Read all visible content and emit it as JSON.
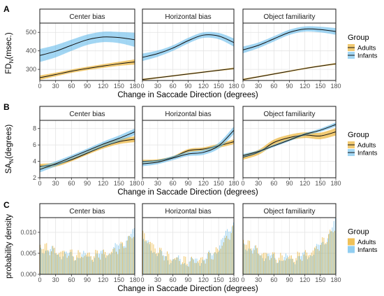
{
  "colors": {
    "adults": "#E69F00",
    "infants": "#56B4E9",
    "fit_line": "#111111",
    "panel_bg": "#FFFFFF",
    "grid_major": "#E3E3E3",
    "grid_minor": "#F1F1F1",
    "strip_bg": "#FFFFFF"
  },
  "legend": {
    "title": "Group",
    "entries": [
      "Adults",
      "Infants"
    ]
  },
  "x_axis": {
    "label": "Change in Saccade Direction (degrees)",
    "ticks": [
      0,
      30,
      60,
      90,
      120,
      150,
      180
    ],
    "tick_labels": [
      "0",
      "30",
      "60",
      "90",
      "120",
      "150",
      "180"
    ]
  },
  "chart_data": [
    {
      "tag": "A",
      "type": "line",
      "ylabel_main": "FD",
      "ylabel_sub": "N",
      "ylabel_rest": "(msec.)",
      "ylim": [
        240,
        550
      ],
      "yticks": [
        300,
        400,
        500
      ],
      "ytick_labels": [
        "300",
        "400",
        "500"
      ],
      "facets": [
        {
          "title": "Center bias",
          "series": [
            {
              "name": "Adults",
              "x": [
                0,
                30,
                60,
                90,
                120,
                150,
                180
              ],
              "y": [
                255,
                272,
                290,
                305,
                318,
                330,
                340
              ],
              "se": [
                12,
                10,
                9,
                9,
                10,
                11,
                14
              ]
            },
            {
              "name": "Infants",
              "x": [
                0,
                30,
                60,
                90,
                120,
                150,
                180
              ],
              "y": [
                375,
                398,
                430,
                460,
                475,
                472,
                460
              ],
              "se": [
                35,
                33,
                30,
                28,
                28,
                30,
                38
              ]
            }
          ]
        },
        {
          "title": "Horizontal bias",
          "series": [
            {
              "name": "Adults",
              "x": [
                0,
                30,
                60,
                90,
                120,
                150,
                180
              ],
              "y": [
                245,
                255,
                265,
                275,
                285,
                295,
                305
              ],
              "se": [
                5,
                4,
                4,
                4,
                4,
                4,
                5
              ]
            },
            {
              "name": "Infants",
              "x": [
                0,
                30,
                60,
                90,
                120,
                150,
                180
              ],
              "y": [
                365,
                385,
                415,
                455,
                485,
                480,
                445
              ],
              "se": [
                20,
                17,
                15,
                15,
                15,
                17,
                22
              ]
            }
          ]
        },
        {
          "title": "Object familiarity",
          "series": [
            {
              "name": "Adults",
              "x": [
                0,
                30,
                60,
                90,
                120,
                150,
                180
              ],
              "y": [
                245,
                260,
                275,
                290,
                305,
                318,
                330
              ],
              "se": [
                5,
                4,
                4,
                4,
                4,
                4,
                5
              ]
            },
            {
              "name": "Infants",
              "x": [
                0,
                30,
                60,
                90,
                120,
                150,
                180
              ],
              "y": [
                405,
                430,
                465,
                500,
                518,
                515,
                505
              ],
              "se": [
                18,
                15,
                14,
                14,
                14,
                15,
                18
              ]
            }
          ]
        }
      ]
    },
    {
      "tag": "B",
      "type": "line",
      "ylabel_main": "SA",
      "ylabel_sub": "N",
      "ylabel_rest": "(degrees)",
      "ylim": [
        2,
        9
      ],
      "yticks": [
        2,
        4,
        6,
        8
      ],
      "ytick_labels": [
        "2",
        "4",
        "6",
        "8"
      ],
      "facets": [
        {
          "title": "Center bias",
          "series": [
            {
              "name": "Adults",
              "x": [
                0,
                30,
                60,
                90,
                120,
                150,
                180
              ],
              "y": [
                3.4,
                3.6,
                4.2,
                5.0,
                5.8,
                6.4,
                6.7
              ],
              "se": [
                0.3,
                0.25,
                0.2,
                0.2,
                0.25,
                0.3,
                0.35
              ]
            },
            {
              "name": "Infants",
              "x": [
                0,
                30,
                60,
                90,
                120,
                150,
                180
              ],
              "y": [
                3.0,
                3.7,
                4.5,
                5.3,
                6.1,
                6.8,
                7.6
              ],
              "se": [
                0.35,
                0.3,
                0.25,
                0.25,
                0.3,
                0.35,
                0.4
              ]
            }
          ]
        },
        {
          "title": "Horizontal bias",
          "series": [
            {
              "name": "Adults",
              "x": [
                0,
                30,
                60,
                90,
                120,
                150,
                180
              ],
              "y": [
                4.0,
                4.1,
                4.5,
                5.3,
                5.5,
                5.9,
                6.4
              ],
              "se": [
                0.2,
                0.15,
                0.15,
                0.2,
                0.2,
                0.25,
                0.3
              ]
            },
            {
              "name": "Infants",
              "x": [
                0,
                30,
                60,
                90,
                120,
                150,
                180
              ],
              "y": [
                3.7,
                3.9,
                4.4,
                4.9,
                5.1,
                5.9,
                7.8
              ],
              "se": [
                0.3,
                0.25,
                0.25,
                0.25,
                0.3,
                0.35,
                0.45
              ]
            }
          ]
        },
        {
          "title": "Object familiarity",
          "series": [
            {
              "name": "Adults",
              "x": [
                0,
                30,
                60,
                90,
                120,
                150,
                180
              ],
              "y": [
                4.5,
                5.1,
                6.3,
                6.9,
                7.2,
                7.1,
                7.6
              ],
              "se": [
                0.3,
                0.3,
                0.35,
                0.35,
                0.35,
                0.4,
                0.45
              ]
            },
            {
              "name": "Infants",
              "x": [
                0,
                30,
                60,
                90,
                120,
                150,
                180
              ],
              "y": [
                4.7,
                5.2,
                5.9,
                6.6,
                7.3,
                7.8,
                8.5
              ],
              "se": [
                0.2,
                0.15,
                0.15,
                0.15,
                0.15,
                0.2,
                0.25
              ]
            }
          ]
        }
      ]
    },
    {
      "tag": "C",
      "type": "bar",
      "ylabel_main": "probability density",
      "ylim": [
        0,
        0.0135
      ],
      "yticks": [
        0,
        0.005,
        0.01
      ],
      "ytick_labels": [
        "0.000",
        "0.005",
        "0.010"
      ],
      "bin_width": 3,
      "facets": [
        {
          "title": "Center bias",
          "series": [
            {
              "name": "Adults",
              "profile": [
                0.0072,
                0.0062,
                0.0056,
                0.0052,
                0.0049,
                0.0047,
                0.0046,
                0.0046,
                0.0047,
                0.0049,
                0.0054,
                0.0062,
                0.0078,
                0.0095
              ]
            },
            {
              "name": "Infants",
              "profile": [
                0.0065,
                0.0057,
                0.0052,
                0.0048,
                0.0045,
                0.0043,
                0.0042,
                0.0043,
                0.0045,
                0.0049,
                0.0058,
                0.007,
                0.0088,
                0.01
              ]
            }
          ]
        },
        {
          "title": "Horizontal bias",
          "series": [
            {
              "name": "Adults",
              "profile": [
                0.0095,
                0.0078,
                0.006,
                0.0048,
                0.004,
                0.0035,
                0.0032,
                0.0031,
                0.0033,
                0.0037,
                0.0046,
                0.0062,
                0.0085,
                0.0105
              ]
            },
            {
              "name": "Infants",
              "profile": [
                0.008,
                0.0066,
                0.0052,
                0.0042,
                0.0036,
                0.0032,
                0.003,
                0.003,
                0.0033,
                0.0038,
                0.005,
                0.007,
                0.01,
                0.013
              ]
            }
          ]
        },
        {
          "title": "Object familiarity",
          "series": [
            {
              "name": "Adults",
              "profile": [
                0.0085,
                0.0068,
                0.0056,
                0.0048,
                0.0043,
                0.004,
                0.0039,
                0.004,
                0.0043,
                0.0048,
                0.0057,
                0.0072,
                0.0092,
                0.011
              ]
            },
            {
              "name": "Infants",
              "profile": [
                0.0075,
                0.0061,
                0.0051,
                0.0044,
                0.004,
                0.0037,
                0.0036,
                0.0037,
                0.004,
                0.0045,
                0.0055,
                0.0072,
                0.0095,
                0.0125
              ]
            }
          ]
        }
      ]
    }
  ]
}
